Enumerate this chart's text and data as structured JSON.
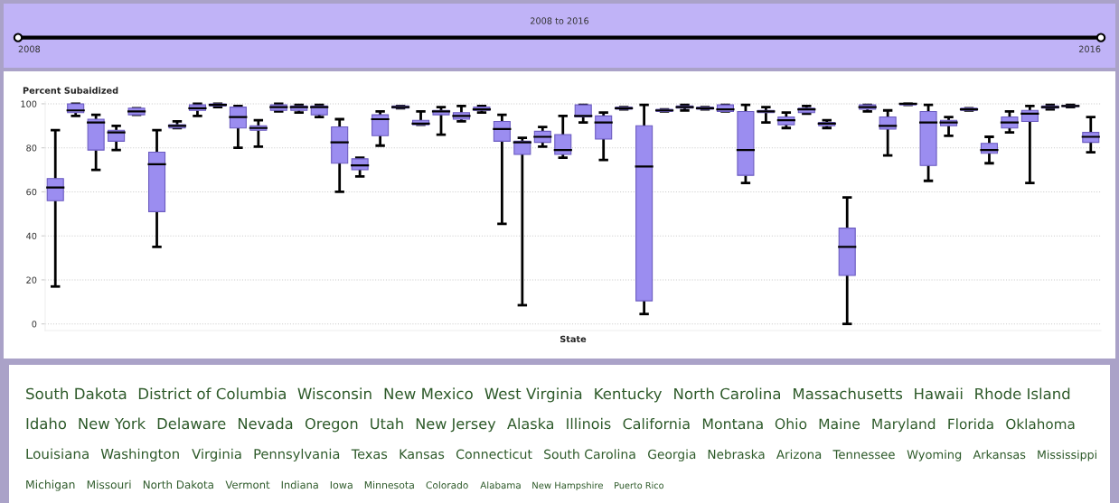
{
  "chart_data": [
    {
      "type": "other",
      "title": "2008 to 2016",
      "annotations": [
        "2008",
        "2016"
      ]
    },
    {
      "type": "box",
      "ylabel": "Percent Subaidized",
      "xlabel": "State",
      "color": "#9b8df0",
      "grid": "y",
      "tick_labels": "y",
      "ylim": [
        -3,
        101
      ],
      "yticks": [
        0,
        20,
        40,
        60,
        80,
        100
      ],
      "categories": [
        null,
        null,
        null,
        null,
        null,
        null,
        null,
        null,
        null,
        null,
        null,
        null,
        null,
        null,
        null,
        null,
        null,
        null,
        null,
        null,
        null,
        null,
        null,
        null,
        null,
        null,
        null,
        null,
        null,
        null,
        null,
        null,
        null,
        null,
        null,
        null,
        null,
        null,
        null,
        null,
        null,
        null,
        null,
        null,
        null,
        null,
        null,
        null,
        null,
        null,
        null,
        null
      ],
      "boxes": [
        {
          "low": 17,
          "q1": 56,
          "median": 62,
          "q3": 66,
          "high": 88
        },
        {
          "low": 94.5,
          "q1": 96,
          "median": 97,
          "q3": 100,
          "high": 100
        },
        {
          "low": 70,
          "q1": 79,
          "median": 91.5,
          "q3": 93,
          "high": 95
        },
        {
          "low": 79,
          "q1": 83,
          "median": 87,
          "q3": 88,
          "high": 90
        },
        {
          "low": 95,
          "q1": 95,
          "median": 96.5,
          "q3": 98,
          "high": 98
        },
        {
          "low": 35,
          "q1": 51,
          "median": 72.5,
          "q3": 78,
          "high": 88
        },
        {
          "low": 89,
          "q1": 89,
          "median": 90,
          "q3": 90.5,
          "high": 92
        },
        {
          "low": 94.5,
          "q1": 97,
          "median": 98,
          "q3": 99.5,
          "high": 100
        },
        {
          "low": 98.5,
          "q1": 99,
          "median": 99.5,
          "q3": 100,
          "high": 100
        },
        {
          "low": 80,
          "q1": 89,
          "median": 94,
          "q3": 98.5,
          "high": 99
        },
        {
          "low": 80.5,
          "q1": 88,
          "median": 89,
          "q3": 90,
          "high": 92.5
        },
        {
          "low": 96.5,
          "q1": 97,
          "median": 98.5,
          "q3": 99.5,
          "high": 100
        },
        {
          "low": 96,
          "q1": 97,
          "median": 98.5,
          "q3": 99,
          "high": 99.5
        },
        {
          "low": 94,
          "q1": 95,
          "median": 98.5,
          "q3": 99,
          "high": 99.5
        },
        {
          "low": 60,
          "q1": 73,
          "median": 82.5,
          "q3": 89.5,
          "high": 93
        },
        {
          "low": 67,
          "q1": 70,
          "median": 72,
          "q3": 75,
          "high": 75.5
        },
        {
          "low": 81,
          "q1": 85.5,
          "median": 93,
          "q3": 95,
          "high": 96.5
        },
        {
          "low": 98,
          "q1": 98,
          "median": 98.5,
          "q3": 99,
          "high": 99
        },
        {
          "low": 90.5,
          "q1": 90.5,
          "median": 91,
          "q3": 92.5,
          "high": 96.5
        },
        {
          "low": 86,
          "q1": 95,
          "median": 96.5,
          "q3": 97,
          "high": 98.5
        },
        {
          "low": 92,
          "q1": 93,
          "median": 94.5,
          "q3": 96,
          "high": 99
        },
        {
          "low": 96,
          "q1": 97,
          "median": 97.5,
          "q3": 98.5,
          "high": 99
        },
        {
          "low": 45.5,
          "q1": 83,
          "median": 88.5,
          "q3": 92,
          "high": 95
        },
        {
          "low": 8.5,
          "q1": 77,
          "median": 82.5,
          "q3": 83,
          "high": 84.5
        },
        {
          "low": 80.5,
          "q1": 82.5,
          "median": 85,
          "q3": 87.5,
          "high": 89.5
        },
        {
          "low": 75.5,
          "q1": 77,
          "median": 79,
          "q3": 86,
          "high": 94.5
        },
        {
          "low": 91.5,
          "q1": 94,
          "median": 94.5,
          "q3": 99.5,
          "high": 99.5
        },
        {
          "low": 74.5,
          "q1": 84,
          "median": 91.5,
          "q3": 94.5,
          "high": 96
        },
        {
          "low": 97.5,
          "q1": 97.5,
          "median": 98,
          "q3": 98.5,
          "high": 98.5
        },
        {
          "low": 4.5,
          "q1": 10.5,
          "median": 71.5,
          "q3": 90,
          "high": 99.5
        },
        {
          "low": 96.5,
          "q1": 96.5,
          "median": 97,
          "q3": 97.5,
          "high": 97.5
        },
        {
          "low": 97,
          "q1": 98,
          "median": 98.5,
          "q3": 99,
          "high": 99.5
        },
        {
          "low": 97.5,
          "q1": 97.5,
          "median": 98,
          "q3": 98.5,
          "high": 98.5
        },
        {
          "low": 96.5,
          "q1": 96.5,
          "median": 97.5,
          "q3": 99.5,
          "high": 99.5
        },
        {
          "low": 64,
          "q1": 67.5,
          "median": 79,
          "q3": 96.5,
          "high": 99.5
        },
        {
          "low": 91.5,
          "q1": 96,
          "median": 96.5,
          "q3": 97,
          "high": 98.5
        },
        {
          "low": 89,
          "q1": 90.5,
          "median": 92.5,
          "q3": 94,
          "high": 96
        },
        {
          "low": 95.5,
          "q1": 96,
          "median": 97.5,
          "q3": 98,
          "high": 99
        },
        {
          "low": 89,
          "q1": 90,
          "median": 91,
          "q3": 91.5,
          "high": 92.5
        },
        {
          "low": 0,
          "q1": 22,
          "median": 35,
          "q3": 43.5,
          "high": 57.5
        },
        {
          "low": 96.5,
          "q1": 97.5,
          "median": 98.5,
          "q3": 99.5,
          "high": 99.5
        },
        {
          "low": 76.5,
          "q1": 88.5,
          "median": 90,
          "q3": 94,
          "high": 97
        },
        {
          "low": 99.5,
          "q1": 99.5,
          "median": 100,
          "q3": 100,
          "high": 100
        },
        {
          "low": 65,
          "q1": 72,
          "median": 91.5,
          "q3": 96.5,
          "high": 99.5
        },
        {
          "low": 85.5,
          "q1": 90,
          "median": 91.5,
          "q3": 92.5,
          "high": 94
        },
        {
          "low": 97,
          "q1": 97,
          "median": 97.5,
          "q3": 98,
          "high": 98
        },
        {
          "low": 73,
          "q1": 77.5,
          "median": 79,
          "q3": 82,
          "high": 85
        },
        {
          "low": 87,
          "q1": 89,
          "median": 91.5,
          "q3": 94,
          "high": 96.5
        },
        {
          "low": 64,
          "q1": 92,
          "median": 95.5,
          "q3": 97,
          "high": 99
        },
        {
          "low": 97.5,
          "q1": 98,
          "median": 98.5,
          "q3": 99,
          "high": 99.5
        },
        {
          "low": 98.5,
          "q1": 98.8,
          "median": 99,
          "q3": 99.3,
          "high": 99.5
        },
        {
          "low": 78,
          "q1": 82.5,
          "median": 85,
          "q3": 87,
          "high": 94
        }
      ]
    },
    {
      "type": "other",
      "annotations": [
        "South Dakota",
        "District of Columbia",
        "Wisconsin",
        "New Mexico",
        "West Virginia",
        "Kentucky",
        "North Carolina",
        "Massachusetts",
        "Hawaii",
        "Rhode Island",
        "Idaho",
        "New York",
        "Delaware",
        "Nevada",
        "Oregon",
        "Utah",
        "New Jersey",
        "Alaska",
        "Illinois",
        "California",
        "Montana",
        "Ohio",
        "Maine",
        "Maryland",
        "Florida",
        "Oklahoma",
        "Louisiana",
        "Washington",
        "Virginia",
        "Pennsylvania",
        "Texas",
        "Kansas",
        "Connecticut",
        "South Carolina",
        "Georgia",
        "Nebraska",
        "Arizona",
        "Tennessee",
        "Wyoming",
        "Arkansas",
        "Mississippi",
        "Michigan",
        "Missouri",
        "North Dakota",
        "Vermont",
        "Indiana",
        "Iowa",
        "Minnesota",
        "Colorado",
        "Alabama",
        "New Hampshire",
        "Puerto Rico"
      ]
    }
  ]
}
